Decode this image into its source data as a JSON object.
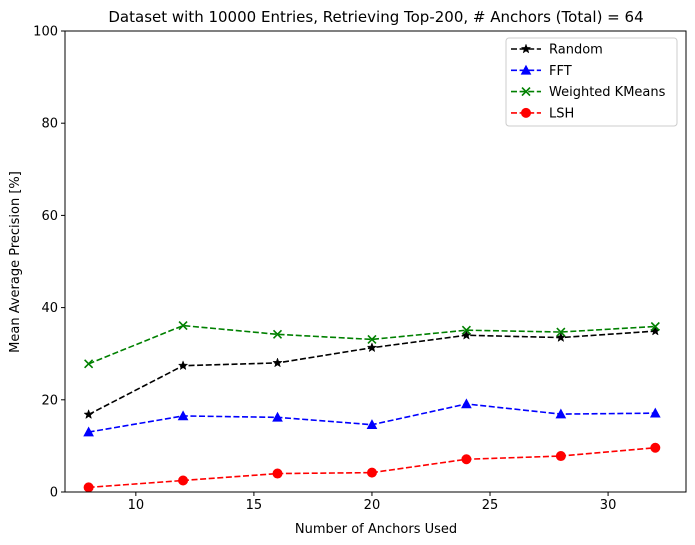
{
  "chart_data": {
    "type": "line",
    "title": "Dataset with 10000 Entries, Retrieving Top-200, # Anchors (Total) = 64",
    "xlabel": "Number of Anchors Used",
    "ylabel": "Mean Average Precision [%]",
    "xlim": [
      7,
      33.3
    ],
    "ylim": [
      0,
      100
    ],
    "xticks": [
      10,
      15,
      20,
      25,
      30
    ],
    "yticks": [
      0,
      20,
      40,
      60,
      80,
      100
    ],
    "grid": false,
    "legend_position": "top-right",
    "x": [
      8,
      12,
      16,
      20,
      24,
      28,
      32
    ],
    "series": [
      {
        "name": "Random",
        "color": "#000000",
        "marker": "star",
        "values": [
          16.8,
          27.4,
          28.0,
          31.3,
          34.0,
          33.5,
          34.9
        ]
      },
      {
        "name": "FFT",
        "color": "#0000ff",
        "marker": "triangle",
        "values": [
          13.0,
          16.5,
          16.2,
          14.6,
          19.1,
          16.9,
          17.1
        ]
      },
      {
        "name": "Weighted KMeans",
        "color": "#008000",
        "marker": "x",
        "values": [
          27.8,
          36.1,
          34.2,
          33.1,
          35.1,
          34.7,
          35.9
        ]
      },
      {
        "name": "LSH",
        "color": "#ff0000",
        "marker": "circle",
        "values": [
          1.0,
          2.5,
          4.0,
          4.2,
          7.1,
          7.8,
          9.6
        ]
      }
    ]
  }
}
